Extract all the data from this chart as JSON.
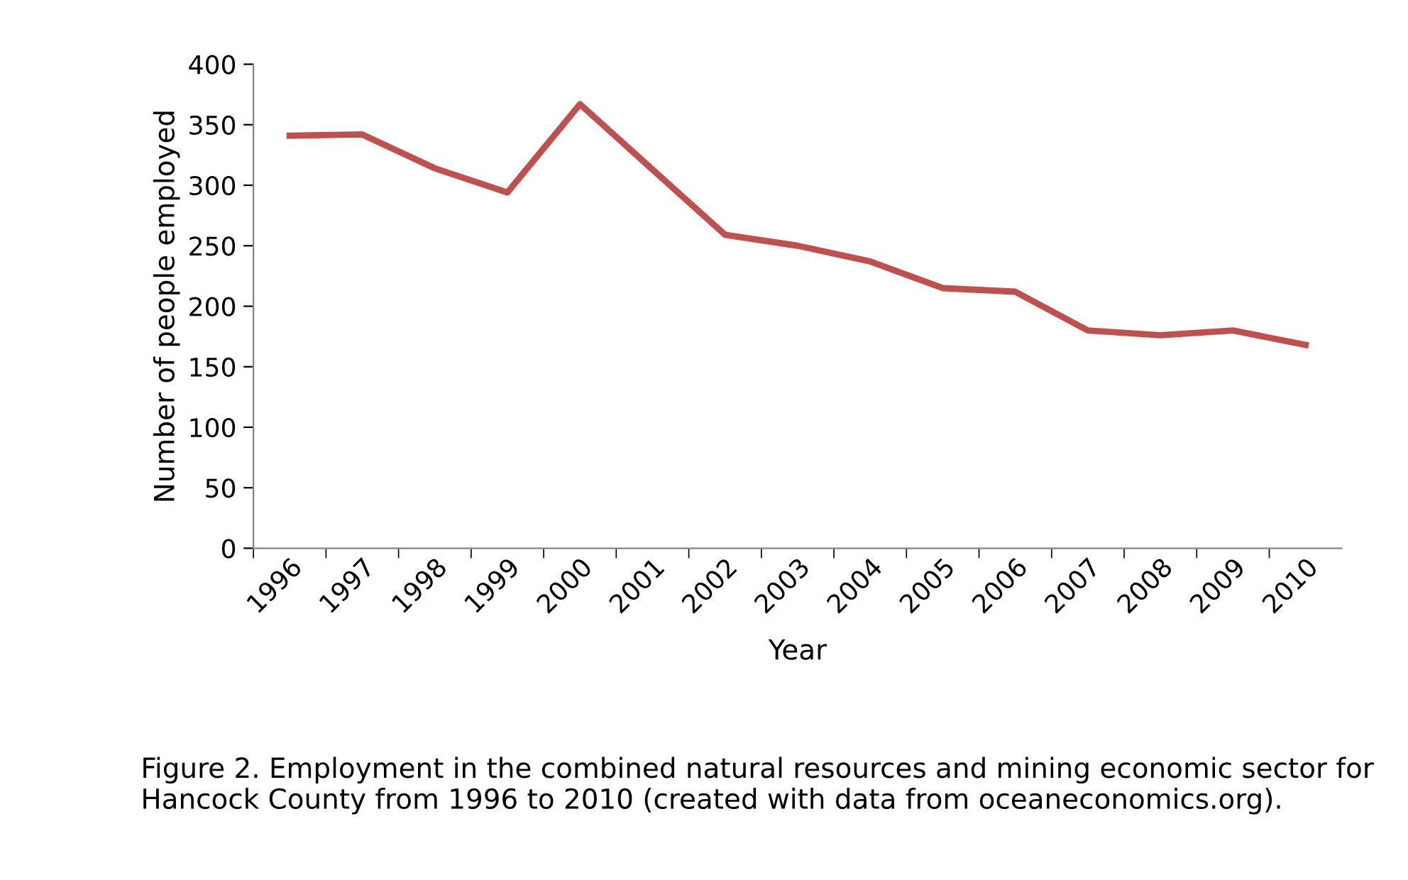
{
  "chart_data": {
    "type": "line",
    "xlabel": "Year",
    "ylabel": "Number of people employed",
    "categories": [
      "1996",
      "1997",
      "1998",
      "1999",
      "2000",
      "2001",
      "2002",
      "2003",
      "2004",
      "2005",
      "2006",
      "2007",
      "2008",
      "2009",
      "2010"
    ],
    "series": [
      {
        "color": "#c0504d",
        "values": [
          341,
          342,
          314,
          294,
          367,
          313,
          259,
          250,
          237,
          215,
          212,
          180,
          176,
          180,
          168
        ]
      }
    ],
    "ylim": [
      0,
      400
    ],
    "yticks": [
      0,
      50,
      100,
      150,
      200,
      250,
      300,
      350,
      400
    ],
    "grid": false,
    "legend": false,
    "marker": "none",
    "line_style": "solid",
    "annotations": [
      "Figure 2. Employment in the combined natural resources and mining economic sector for Hancock County from 1996 to 2010 (created with data from oceaneconomics.org)."
    ]
  }
}
